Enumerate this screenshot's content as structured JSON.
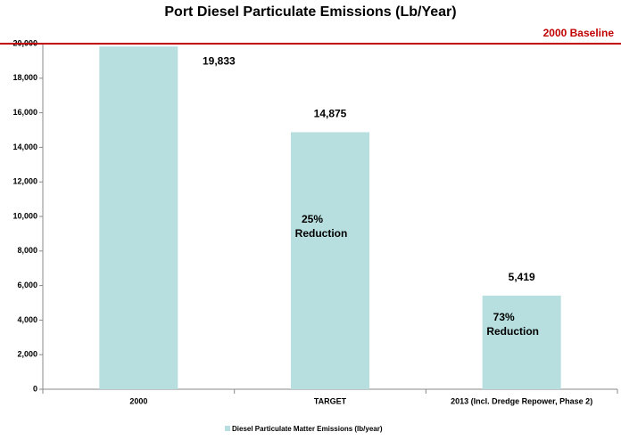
{
  "chart_data": {
    "type": "bar",
    "title": "Port Diesel Particulate Emissions (Lb/Year)",
    "categories": [
      "2000",
      "TARGET",
      "2013 (Incl. Dredge Repower, Phase 2)"
    ],
    "series": [
      {
        "name": "Diesel Particulate Matter Emissions (lb/year)",
        "color": "#b7dfe0",
        "values": [
          19833,
          14875,
          5419
        ],
        "value_labels": [
          "19,833",
          "14,875",
          "5,419"
        ]
      }
    ],
    "annotations": [
      null,
      [
        "25%",
        "Reduction"
      ],
      [
        "73%",
        "Reduction"
      ]
    ],
    "baseline": {
      "value": 20000,
      "label": "2000 Baseline",
      "color": "#c00000"
    },
    "ylim": [
      0,
      20000
    ],
    "yticks": [
      0,
      {
        "value": 2000,
        "label": "2,000"
      },
      {
        "value": 4000,
        "label": "4,000"
      },
      {
        "value": 6000,
        "label": "6,000"
      },
      {
        "value": 8000,
        "label": "8,000"
      },
      {
        "value": 10000,
        "label": "10,000"
      },
      {
        "value": 12000,
        "label": "12,000"
      },
      {
        "value": 14000,
        "label": "14,000"
      },
      {
        "value": 16000,
        "label": "16,000"
      },
      {
        "value": 18000,
        "label": "18,000"
      },
      {
        "value": 20000,
        "label": "20,000"
      }
    ],
    "legend": "bottom"
  }
}
